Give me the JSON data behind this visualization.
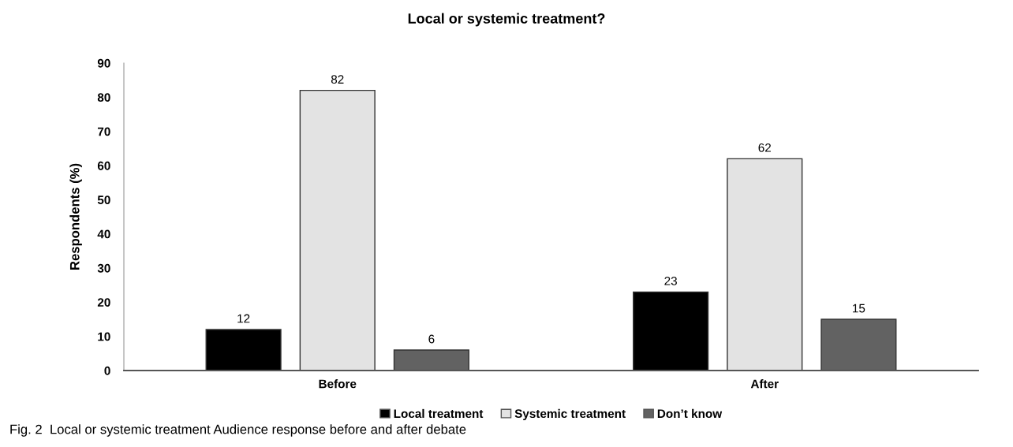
{
  "chart_data": {
    "type": "bar",
    "title": "Local or systemic treatment?",
    "ylabel": "Respondents (%)",
    "categories": [
      "Before",
      "After"
    ],
    "series": [
      {
        "name": "Local treatment",
        "color": "#000000",
        "values": [
          12,
          23
        ]
      },
      {
        "name": "Systemic treatment",
        "color": "#e3e3e3",
        "values": [
          82,
          62
        ]
      },
      {
        "name": "Don’t know",
        "color": "#626262",
        "values": [
          6,
          15
        ]
      }
    ],
    "ylim": [
      0,
      90
    ],
    "yticks": [
      0,
      10,
      20,
      30,
      40,
      50,
      60,
      70,
      80,
      90
    ],
    "data_labels": true,
    "grid": false,
    "legend": "bottom",
    "annotations": [
      "Fig. 2  Local or systemic treatment Audience response before and after debate"
    ]
  }
}
